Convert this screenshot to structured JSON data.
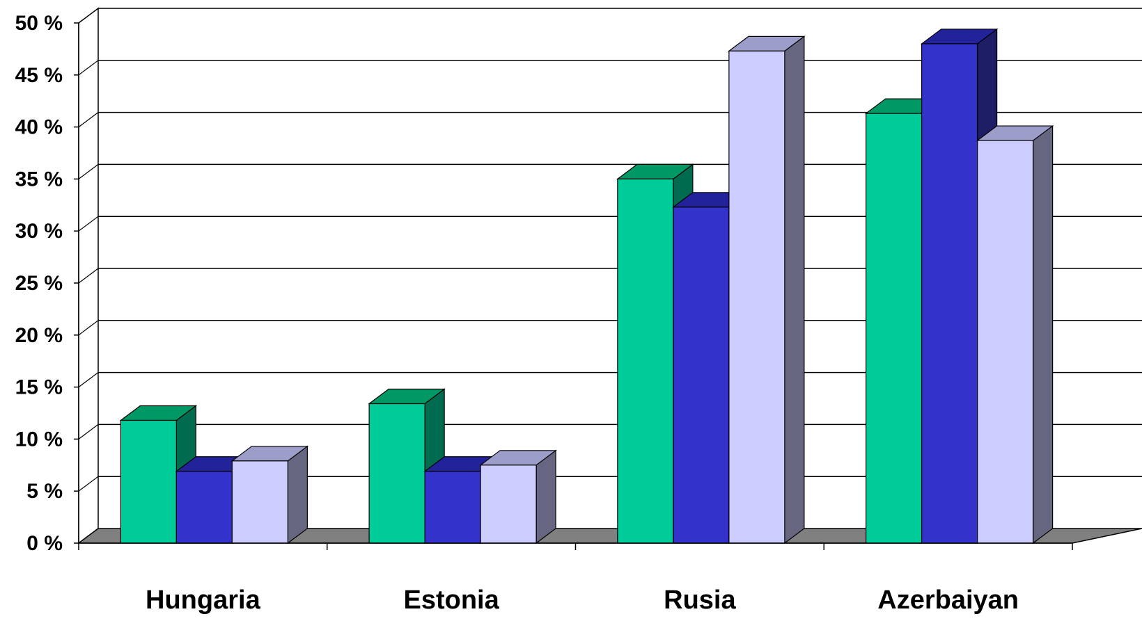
{
  "chart_data": {
    "type": "bar",
    "title": "",
    "xlabel": "",
    "ylabel": "",
    "categories": [
      "Hungaria",
      "Estonia",
      "Rusia",
      "Azerbaiyan"
    ],
    "series": [
      {
        "values": [
          11.8,
          13.4,
          35.0,
          41.3
        ]
      },
      {
        "values": [
          6.9,
          6.9,
          32.3,
          48.0
        ]
      },
      {
        "values": [
          7.9,
          7.5,
          47.3,
          38.7
        ]
      }
    ],
    "ylim": [
      0,
      50
    ],
    "yticks": [
      {
        "value": 0,
        "label": "0 %"
      },
      {
        "value": 5,
        "label": "5 %"
      },
      {
        "value": 10,
        "label": "10 %"
      },
      {
        "value": 15,
        "label": "15 %"
      },
      {
        "value": 20,
        "label": "20 %"
      },
      {
        "value": 25,
        "label": "25 %"
      },
      {
        "value": 30,
        "label": "30 %"
      },
      {
        "value": 35,
        "label": "35 %"
      },
      {
        "value": 40,
        "label": "40 %"
      },
      {
        "value": 45,
        "label": "45 %"
      },
      {
        "value": 50,
        "label": "50 %"
      }
    ],
    "grid": true,
    "legend": "none",
    "three_d": true,
    "colors": {
      "series_front": [
        "#00cc99",
        "#3333cc",
        "#ccccff"
      ],
      "series_top": [
        "#009966",
        "#22229b",
        "#9d9dca"
      ],
      "series_side": [
        "#006b4f",
        "#1e1e66",
        "#666680"
      ],
      "floor": "#808080",
      "gridline": "#000000"
    }
  }
}
